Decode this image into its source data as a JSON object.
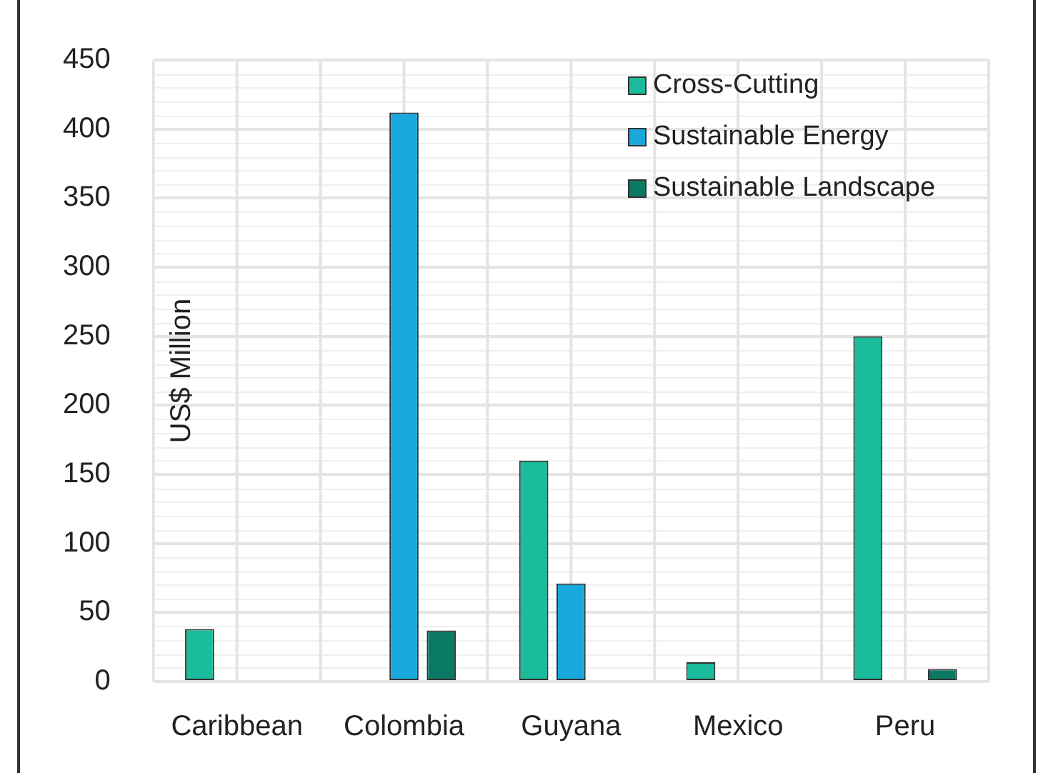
{
  "chart_data": {
    "type": "bar",
    "ylabel": "US$ Million",
    "categories": [
      "Caribbean",
      "Colombia",
      "Guyana",
      "Mexico",
      "Peru"
    ],
    "series": [
      {
        "name": "Cross-Cutting",
        "color": "#1abc9c",
        "values": [
          38,
          null,
          160,
          14,
          250
        ]
      },
      {
        "name": "Sustainable Energy",
        "color": "#18a8de",
        "values": [
          null,
          412,
          71,
          null,
          null
        ]
      },
      {
        "name": "Sustainable Landscape",
        "color": "#0b7a64",
        "values": [
          null,
          37,
          null,
          null,
          9
        ]
      }
    ],
    "ylim": [
      0,
      450
    ],
    "yticks": [
      0,
      50,
      100,
      150,
      200,
      250,
      300,
      350,
      400,
      450
    ],
    "grid": true,
    "legend": "top right"
  }
}
